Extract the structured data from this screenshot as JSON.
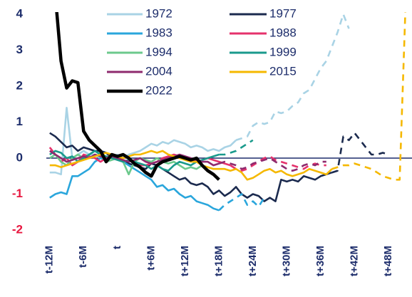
{
  "chart_data": {
    "type": "line",
    "x": [
      -12,
      -11,
      -10,
      -9,
      -8,
      -7,
      -6,
      -5,
      -4,
      -3,
      -2,
      -1,
      0,
      1,
      2,
      3,
      4,
      5,
      6,
      7,
      8,
      9,
      10,
      11,
      12,
      13,
      14,
      15,
      16,
      17,
      18,
      19,
      20,
      21,
      22,
      23,
      24,
      25,
      26,
      27,
      28,
      29,
      30,
      31,
      32,
      33,
      34,
      35,
      36,
      37,
      38,
      39,
      40,
      41,
      42,
      43,
      44,
      45,
      46,
      47,
      48,
      49,
      50,
      51,
      52
    ],
    "xlim": [
      -12.6,
      51.8
    ],
    "xticks": [
      {
        "value": -12,
        "label": "t-12M"
      },
      {
        "value": -6,
        "label": "t-6M"
      },
      {
        "value": 0,
        "label": "t"
      },
      {
        "value": 6,
        "label": "t+6M"
      },
      {
        "value": 12,
        "label": "t+12M"
      },
      {
        "value": 18,
        "label": "t+18M"
      },
      {
        "value": 24,
        "label": "t+24M"
      },
      {
        "value": 30,
        "label": "t+30M"
      },
      {
        "value": 36,
        "label": "t+36M"
      },
      {
        "value": 42,
        "label": "t+42M"
      },
      {
        "value": 48,
        "label": "t+48M"
      }
    ],
    "ylim": [
      -2.3,
      4.05
    ],
    "yticks": [
      -2,
      -1,
      0,
      1,
      2,
      3,
      4
    ],
    "ytick_color": "#1d2d6b",
    "ytick_negative_color": "#e8173f",
    "zero_line": true,
    "series": [
      {
        "name": "1972",
        "color": "#a9d3e5",
        "dash_from": 21,
        "values": [
          -0.4,
          -0.4,
          -0.45,
          1.4,
          0,
          0.1,
          0.2,
          0.1,
          0.1,
          0,
          -0.05,
          0.05,
          0.1,
          0,
          0.1,
          0.15,
          0.2,
          0.3,
          0.4,
          0.35,
          0.45,
          0.4,
          0.5,
          0.45,
          0.4,
          0.3,
          0.35,
          0.3,
          0.2,
          0.25,
          0.2,
          0.3,
          0.35,
          0.5,
          0.55,
          0.6,
          0.9,
          1,
          0.95,
          1,
          1.3,
          1.25,
          1.3,
          1.45,
          1.55,
          1.8,
          1.9,
          2.2,
          2.5,
          2.7,
          3.1,
          3.5,
          4,
          3.6,
          null,
          null,
          null,
          null,
          null,
          null,
          null,
          null,
          null,
          null,
          null
        ]
      },
      {
        "name": "1977",
        "color": "#1b2a4e",
        "dash_from": 38,
        "values": [
          0.7,
          0.6,
          0.45,
          0.3,
          0.35,
          0.2,
          0.3,
          0.25,
          0.2,
          0.2,
          0.15,
          0,
          0.05,
          -0.1,
          -0.15,
          -0.2,
          -0.25,
          -0.3,
          -0.15,
          -0.2,
          -0.3,
          -0.4,
          -0.5,
          -0.6,
          -0.55,
          -0.7,
          -0.75,
          -0.7,
          -0.8,
          -1,
          -0.9,
          -1.05,
          -0.95,
          -0.8,
          -1,
          -1.1,
          -1,
          -1.05,
          -1.2,
          -1.1,
          -1.2,
          -0.6,
          -0.65,
          -0.6,
          -0.65,
          -0.5,
          -0.55,
          -0.6,
          -0.5,
          -0.45,
          -0.4,
          -0.35,
          0.6,
          0.5,
          0.7,
          0.5,
          0.3,
          0.1,
          0.1,
          0.15,
          0.1,
          null,
          null,
          null,
          null
        ]
      },
      {
        "name": "1983",
        "color": "#2aa6dc",
        "dash_from": 18,
        "values": [
          -1.1,
          -1,
          -0.95,
          -1,
          -0.5,
          -0.5,
          -0.4,
          -0.3,
          -0.1,
          0,
          -0.05,
          0.05,
          0,
          -0.1,
          -0.2,
          -0.3,
          -0.4,
          -0.5,
          -0.6,
          -0.8,
          -0.75,
          -0.9,
          -0.85,
          -1,
          -1.1,
          -1.05,
          -1.2,
          -1.25,
          -1.3,
          -1.4,
          -1.45,
          -1.3,
          -1.2,
          -1.1,
          -1,
          -1.3,
          -1.2,
          -1.35,
          -1.1,
          null,
          null,
          null,
          null,
          null,
          null,
          null,
          null,
          null,
          null,
          null,
          null,
          null,
          null,
          null,
          null,
          null,
          null,
          null,
          null,
          null,
          null,
          null,
          null,
          null,
          null
        ]
      },
      {
        "name": "1988",
        "color": "#e5326c",
        "dash_from": 20,
        "values": [
          0.3,
          0.1,
          -0.1,
          0,
          -0.2,
          -0.1,
          0.1,
          0.05,
          0,
          -0.1,
          0,
          0.1,
          0,
          -0.1,
          -0.05,
          -0.15,
          -0.2,
          -0.2,
          -0.15,
          -0.1,
          0,
          0.05,
          0.1,
          0.05,
          0,
          -0.05,
          -0.1,
          -0.05,
          0,
          -0.05,
          -0.1,
          -0.15,
          -0.2,
          -0.3,
          -0.35,
          -0.3,
          -0.2,
          -0.1,
          0,
          0.05,
          -0.05,
          -0.1,
          -0.15,
          -0.2,
          -0.25,
          -0.3,
          -0.2,
          -0.15,
          -0.2,
          -0.2,
          null,
          null,
          null,
          null,
          null,
          null,
          null,
          null,
          null,
          null,
          null,
          null,
          null,
          null,
          null
        ]
      },
      {
        "name": "1994",
        "color": "#6cc98c",
        "values": [
          0,
          0.1,
          -0.1,
          -0.2,
          0,
          0.1,
          0,
          0.1,
          0.2,
          0.1,
          -0.1,
          -0.05,
          0,
          -0.1,
          -0.45,
          -0.1,
          0,
          -0.05,
          -0.1,
          0,
          -0.1,
          -0.15,
          -0.1,
          -0.2,
          -0.3,
          -0.25,
          -0.3,
          -0.2,
          null,
          null,
          null,
          null,
          null,
          null,
          null,
          null,
          null,
          null,
          null,
          null,
          null,
          null,
          null,
          null,
          null,
          null,
          null,
          null,
          null,
          null,
          null,
          null,
          null,
          null,
          null,
          null,
          null,
          null,
          null,
          null,
          null,
          null,
          null,
          null,
          null
        ]
      },
      {
        "name": "1999",
        "color": "#1a9a8c",
        "dash_from": 18,
        "values": [
          0.1,
          0.2,
          0.15,
          0,
          0.05,
          -0.1,
          0,
          0.1,
          0.2,
          0.1,
          0.05,
          0,
          -0.05,
          -0.1,
          -0.05,
          -0.1,
          -0.15,
          -0.2,
          -0.3,
          -0.2,
          -0.3,
          -0.35,
          -0.2,
          -0.1,
          -0.15,
          -0.2,
          -0.1,
          -0.05,
          0,
          0.05,
          0.1,
          0.1,
          0.15,
          0.2,
          0.3,
          0.4,
          0.5,
          null,
          null,
          null,
          null,
          null,
          null,
          null,
          null,
          null,
          null,
          null,
          null,
          null,
          null,
          null,
          null,
          null,
          null,
          null,
          null,
          null,
          null,
          null,
          null,
          null,
          null,
          null,
          null
        ]
      },
      {
        "name": "2004",
        "color": "#8e2a6e",
        "dash_from": 18,
        "values": [
          0.2,
          0.1,
          0,
          -0.1,
          -0.05,
          0,
          0.05,
          0,
          0.1,
          0.05,
          0,
          0.05,
          0,
          -0.05,
          -0.1,
          -0.05,
          0,
          -0.1,
          -0.15,
          -0.1,
          -0.05,
          0,
          0.05,
          0.1,
          0.05,
          0,
          -0.05,
          -0.1,
          -0.1,
          -0.2,
          -0.15,
          -0.1,
          -0.15,
          -0.2,
          -0.3,
          -0.25,
          -0.15,
          -0.1,
          -0.05,
          0,
          -0.1,
          -0.2,
          -0.3,
          -0.35,
          -0.3,
          -0.2,
          -0.15,
          -0.2,
          -0.1,
          -0.1,
          null,
          null,
          null,
          null,
          null,
          null,
          null,
          null,
          null,
          null,
          null,
          null,
          null,
          null,
          null
        ]
      },
      {
        "name": "2015",
        "color": "#f5b800",
        "dash_from": 38,
        "values": [
          -0.2,
          -0.2,
          -0.25,
          -0.2,
          -0.15,
          -0.1,
          -0.05,
          0,
          0.05,
          0.1,
          0.15,
          0.1,
          0.05,
          0,
          0.05,
          0.1,
          0.1,
          0.15,
          0.2,
          0.15,
          0.2,
          0.1,
          0.05,
          0,
          -0.05,
          -0.1,
          -0.1,
          -0.2,
          -0.25,
          -0.3,
          -0.3,
          -0.3,
          -0.35,
          -0.3,
          -0.4,
          -0.6,
          -0.55,
          -0.45,
          -0.35,
          -0.3,
          -0.4,
          -0.35,
          -0.45,
          -0.5,
          -0.45,
          -0.4,
          -0.3,
          -0.35,
          -0.4,
          -0.45,
          -0.3,
          -0.25,
          -0.2,
          -0.2,
          -0.15,
          -0.2,
          -0.25,
          -0.3,
          -0.4,
          -0.5,
          -0.55,
          -0.6,
          -0.6,
          4.1,
          null
        ]
      },
      {
        "name": "2022",
        "color": "#000000",
        "width": 4.5,
        "values": [
          5.5,
          4.5,
          2.7,
          1.95,
          2.15,
          2.1,
          0.75,
          0.5,
          0.35,
          0.2,
          -0.1,
          0.1,
          0.05,
          0.1,
          0,
          -0.15,
          -0.25,
          -0.4,
          -0.5,
          -0.2,
          -0.1,
          -0.05,
          0,
          0.05,
          0,
          -0.05,
          0,
          -0.2,
          -0.35,
          -0.45,
          -0.6,
          null,
          null,
          null,
          null,
          null,
          null,
          null,
          null,
          null,
          null,
          null,
          null,
          null,
          null,
          null,
          null,
          null,
          null,
          null,
          null,
          null,
          null,
          null,
          null,
          null,
          null,
          null,
          null,
          null,
          null,
          null,
          null,
          null,
          null
        ]
      }
    ]
  }
}
